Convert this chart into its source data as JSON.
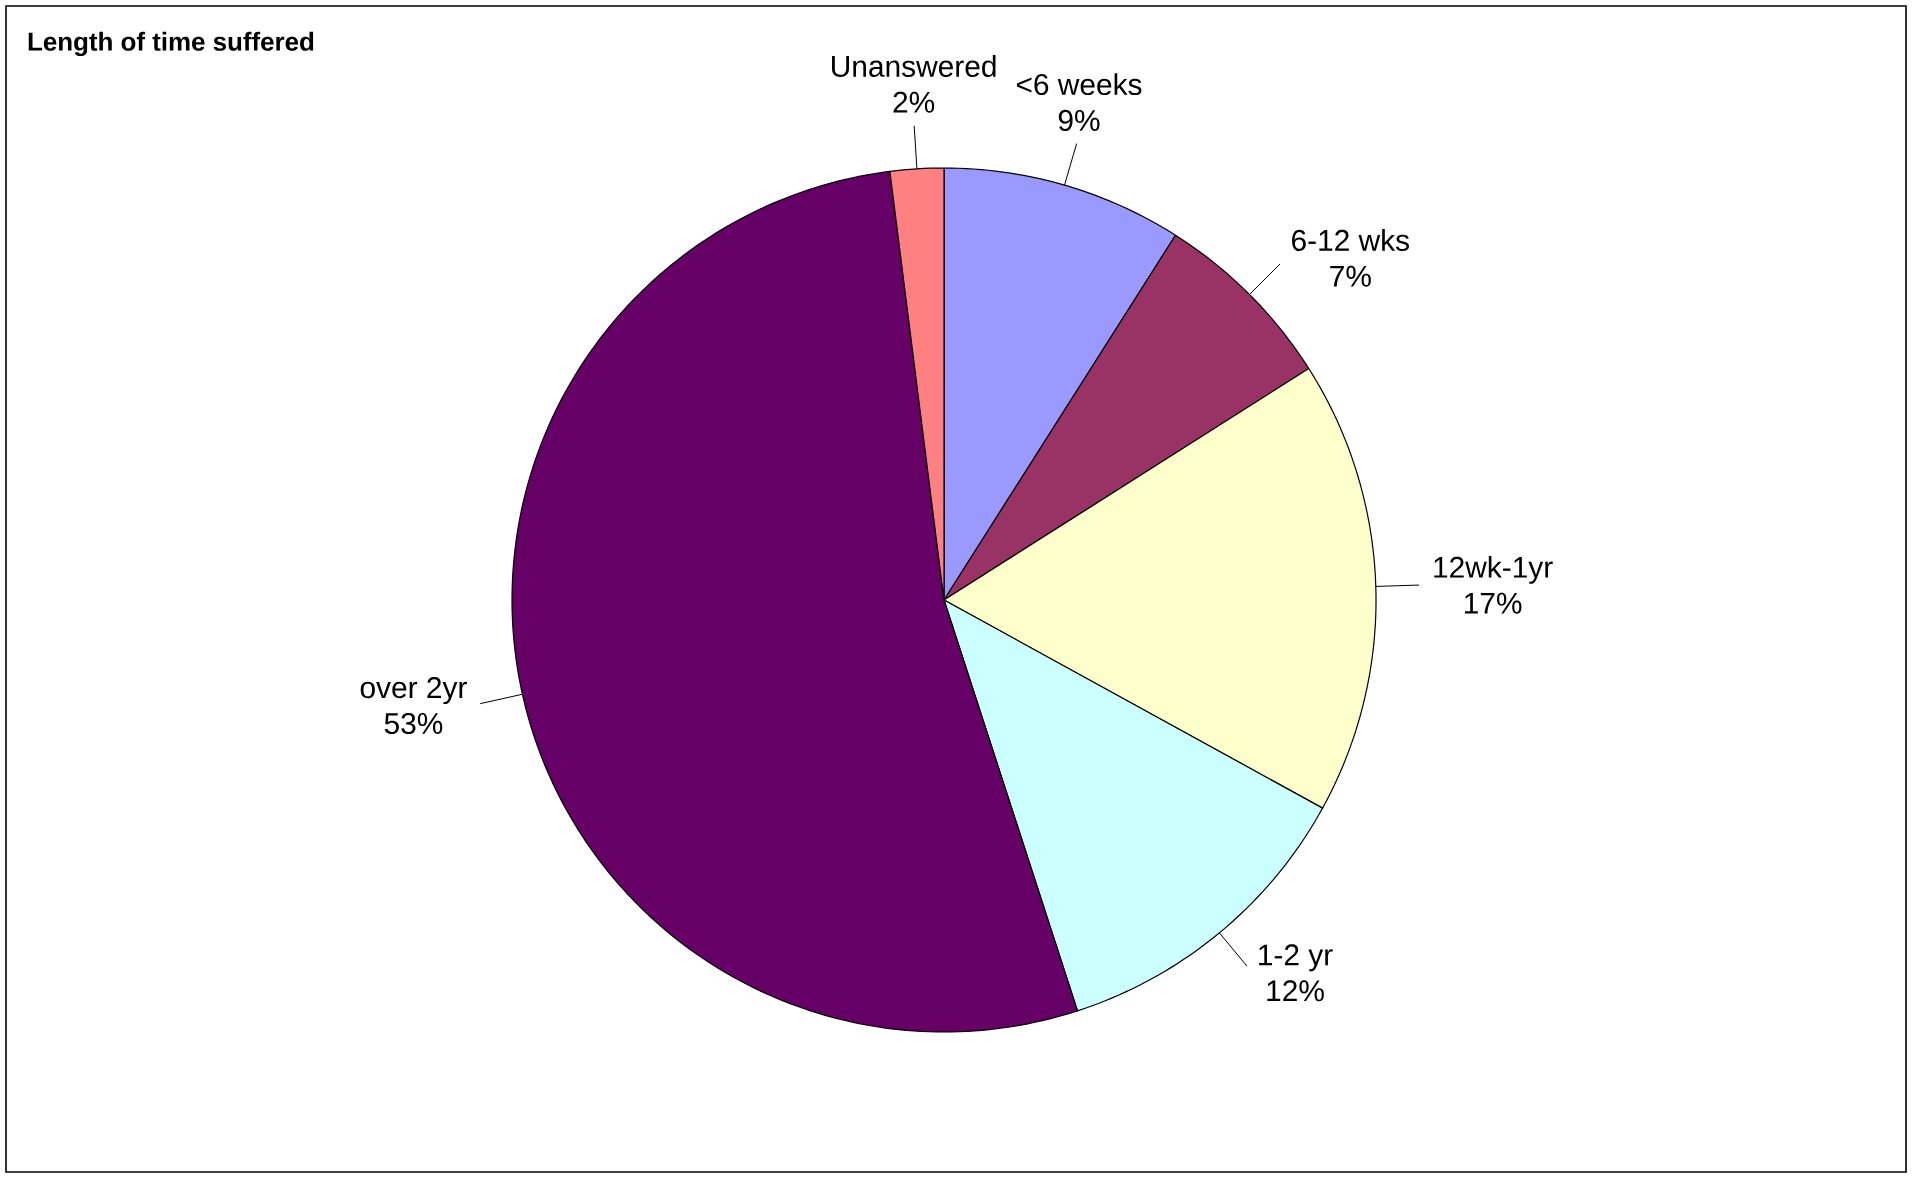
{
  "chart_data": {
    "type": "pie",
    "title": "Length of time suffered",
    "categories": [
      "<6 weeks",
      "6-12 wks",
      "12wk-1yr",
      "1-2 yr",
      "over 2yr",
      "Unanswered"
    ],
    "values": [
      9,
      7,
      17,
      12,
      53,
      2
    ],
    "value_labels": [
      "9%",
      "7%",
      "17%",
      "12%",
      "53%",
      "2%"
    ],
    "colors": [
      "#9999ff",
      "#993366",
      "#ffffcc",
      "#ccffff",
      "#660066",
      "#ff8080"
    ]
  }
}
